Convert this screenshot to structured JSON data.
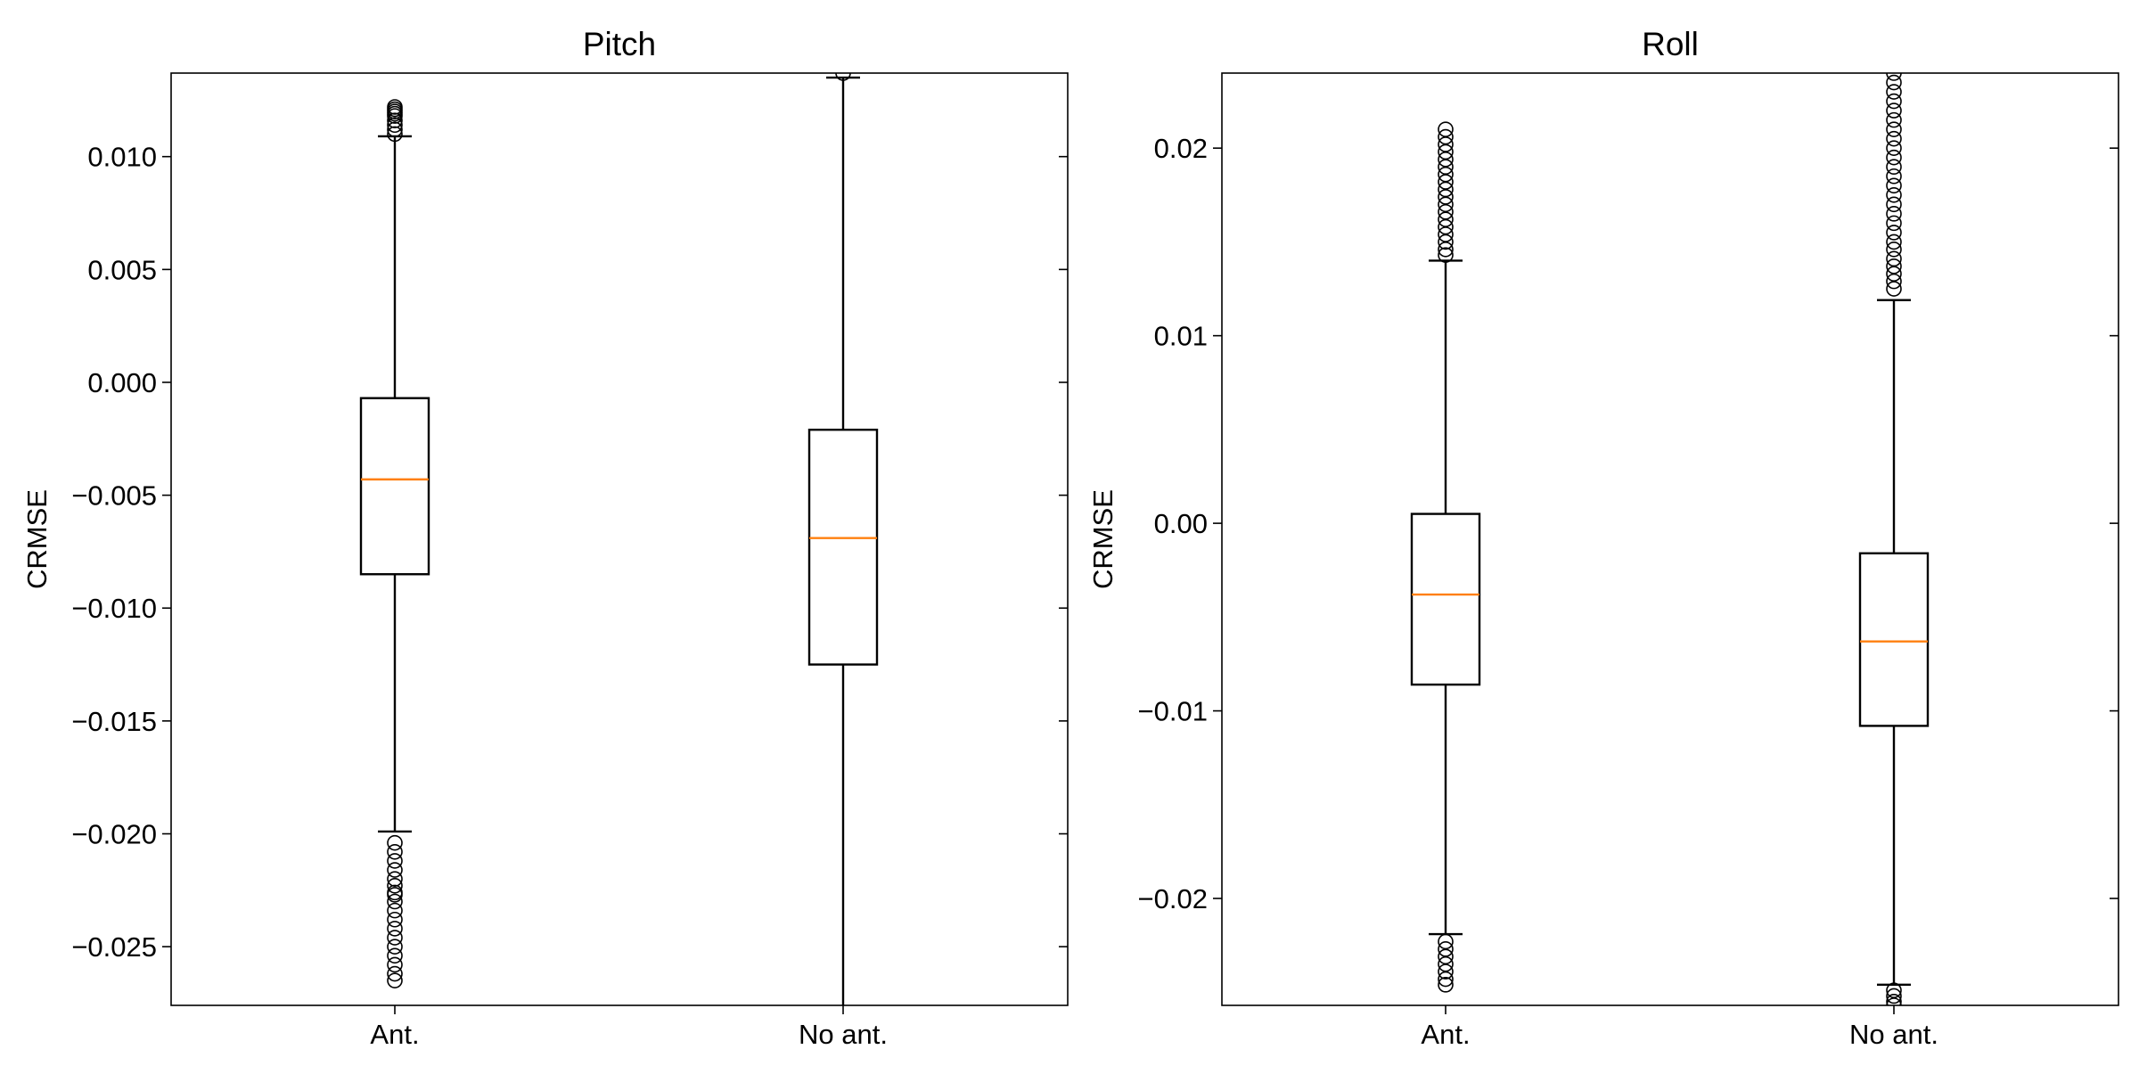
{
  "chart_data": [
    {
      "type": "box",
      "title": "Pitch",
      "ylabel": "CRMSE",
      "xlabel": "",
      "ylim": [
        -0.0276,
        0.0137
      ],
      "yticks": [
        -0.025,
        -0.02,
        -0.015,
        -0.01,
        -0.005,
        0.0,
        0.005,
        0.01
      ],
      "ytick_labels": [
        "−0.025",
        "−0.020",
        "−0.015",
        "−0.010",
        "−0.005",
        "0.000",
        "0.005",
        "0.010"
      ],
      "categories": [
        "Ant.",
        "No ant."
      ],
      "boxes": [
        {
          "label": "Ant.",
          "whisker_low": -0.0199,
          "q1": -0.0085,
          "median": -0.0043,
          "q3": -0.0007,
          "whisker_high": 0.0109,
          "outliers": [
            0.011,
            0.0112,
            0.0114,
            0.0116,
            0.0118,
            0.0119,
            0.012,
            0.0121,
            0.0122,
            -0.0204,
            -0.0208,
            -0.0212,
            -0.0216,
            -0.022,
            -0.0223,
            -0.0226,
            -0.0227,
            -0.023,
            -0.0234,
            -0.0238,
            -0.0242,
            -0.0246,
            -0.025,
            -0.0254,
            -0.0258,
            -0.0262,
            -0.0265
          ]
        },
        {
          "label": "No ant.",
          "whisker_low": -0.028,
          "q1": -0.0125,
          "median": -0.0069,
          "q3": -0.0021,
          "whisker_high": 0.0135,
          "outliers": [
            0.0137
          ]
        }
      ],
      "grid": false,
      "median_color": "#ff7f0e",
      "box_color": "#000000"
    },
    {
      "type": "box",
      "title": "Roll",
      "ylabel": "CRMSE",
      "xlabel": "",
      "ylim": [
        -0.0257,
        0.024
      ],
      "yticks": [
        -0.02,
        -0.01,
        0.0,
        0.01,
        0.02
      ],
      "ytick_labels": [
        "−0.02",
        "−0.01",
        "0.00",
        "0.01",
        "0.02"
      ],
      "categories": [
        "Ant.",
        "No ant."
      ],
      "boxes": [
        {
          "label": "Ant.",
          "whisker_low": -0.0219,
          "q1": -0.0086,
          "median": -0.0038,
          "q3": 0.0005,
          "whisker_high": 0.014,
          "outliers": [
            0.0143,
            0.0146,
            0.015,
            0.0154,
            0.0158,
            0.0162,
            0.0166,
            0.017,
            0.0174,
            0.0178,
            0.0182,
            0.0186,
            0.019,
            0.0194,
            0.0198,
            0.0202,
            0.0206,
            0.021,
            -0.0223,
            -0.0227,
            -0.0231,
            -0.0235,
            -0.0239,
            -0.0243,
            -0.0246
          ]
        },
        {
          "label": "No ant.",
          "whisker_low": -0.0246,
          "q1": -0.0108,
          "median": -0.0063,
          "q3": -0.0016,
          "whisker_high": 0.0119,
          "outliers": [
            0.0125,
            0.0129,
            0.0133,
            0.0137,
            0.0141,
            0.0146,
            0.015,
            0.0155,
            0.016,
            0.0165,
            0.017,
            0.0175,
            0.018,
            0.0185,
            0.019,
            0.0195,
            0.02,
            0.0205,
            0.021,
            0.0215,
            0.022,
            0.0225,
            0.023,
            0.0235,
            0.024,
            -0.0249,
            -0.0252,
            -0.0255,
            -0.0257
          ]
        }
      ],
      "grid": false,
      "median_color": "#ff7f0e",
      "box_color": "#000000"
    }
  ]
}
